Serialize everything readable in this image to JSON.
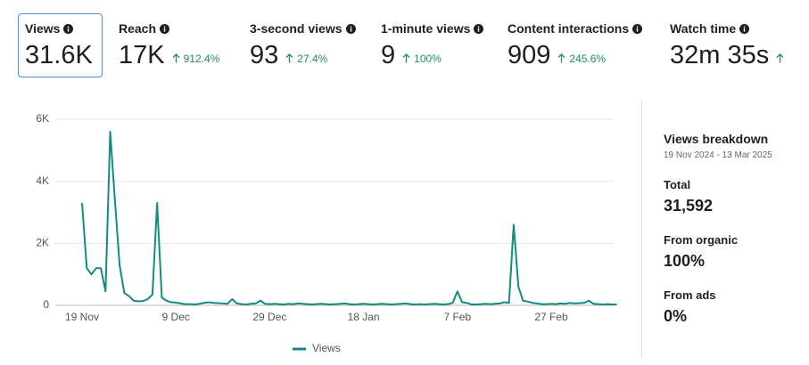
{
  "metrics": [
    {
      "label": "Views",
      "value": "31.6K"
    },
    {
      "label": "Reach",
      "value": "17K",
      "change": "912.4%"
    },
    {
      "label": "3-second views",
      "value": "93",
      "change": "27.4%"
    },
    {
      "label": "1-minute views",
      "value": "9",
      "change": "100%"
    },
    {
      "label": "Content interactions",
      "value": "909",
      "change": "245.6%"
    },
    {
      "label": "Watch time",
      "value": "32m 35s"
    }
  ],
  "chart_data": {
    "type": "line",
    "categories": [
      "19 Nov",
      null,
      null,
      null,
      null,
      null,
      null,
      null,
      null,
      null,
      null,
      null,
      null,
      null,
      null,
      null,
      null,
      null,
      null,
      null,
      "9 Dec",
      null,
      null,
      null,
      null,
      null,
      null,
      null,
      null,
      null,
      null,
      null,
      null,
      null,
      null,
      null,
      null,
      null,
      null,
      null,
      "29 Dec",
      null,
      null,
      null,
      null,
      null,
      null,
      null,
      null,
      null,
      null,
      null,
      null,
      null,
      null,
      null,
      null,
      null,
      null,
      null,
      "18 Jan",
      null,
      null,
      null,
      null,
      null,
      null,
      null,
      null,
      null,
      null,
      null,
      null,
      null,
      null,
      null,
      null,
      null,
      null,
      null,
      "7 Feb",
      null,
      null,
      null,
      null,
      null,
      null,
      null,
      null,
      null,
      null,
      null,
      null,
      null,
      null,
      null,
      null,
      null,
      null,
      null,
      "27 Feb",
      null,
      null,
      null,
      null,
      null,
      null,
      null,
      null,
      null,
      null,
      null,
      null,
      null,
      null
    ],
    "series": [
      {
        "name": "Views",
        "color": "#138a85",
        "values": [
          3300,
          1200,
          1000,
          1200,
          1200,
          450,
          5600,
          3400,
          1300,
          400,
          300,
          150,
          130,
          140,
          200,
          350,
          3300,
          250,
          150,
          100,
          90,
          60,
          40,
          40,
          30,
          50,
          80,
          100,
          80,
          70,
          60,
          50,
          200,
          60,
          40,
          30,
          50,
          60,
          150,
          50,
          40,
          50,
          40,
          30,
          50,
          40,
          60,
          50,
          40,
          30,
          40,
          50,
          40,
          30,
          40,
          50,
          60,
          40,
          30,
          40,
          50,
          40,
          30,
          40,
          50,
          40,
          30,
          40,
          50,
          60,
          40,
          30,
          40,
          30,
          40,
          50,
          40,
          30,
          40,
          80,
          450,
          100,
          80,
          30,
          30,
          40,
          50,
          40,
          50,
          60,
          100,
          80,
          2600,
          600,
          150,
          120,
          80,
          60,
          40,
          40,
          50,
          40,
          60,
          50,
          80,
          60,
          70,
          80,
          150,
          50,
          40,
          30,
          40,
          30,
          30
        ]
      }
    ],
    "ylim": [
      0,
      6000
    ],
    "yticks": [
      0,
      {
        "value": 2000,
        "label": "2K"
      },
      {
        "value": 4000,
        "label": "4K"
      },
      {
        "value": 6000,
        "label": "6K"
      }
    ],
    "grid": true,
    "legend": "bottom"
  },
  "breakdown": {
    "title": "Views breakdown",
    "date_range": "19 Nov 2024 - 13 Mar 2025",
    "items": [
      {
        "label": "Total",
        "value": "31,592"
      },
      {
        "label": "From organic",
        "value": "100%"
      },
      {
        "label": "From ads",
        "value": "0%"
      }
    ]
  }
}
